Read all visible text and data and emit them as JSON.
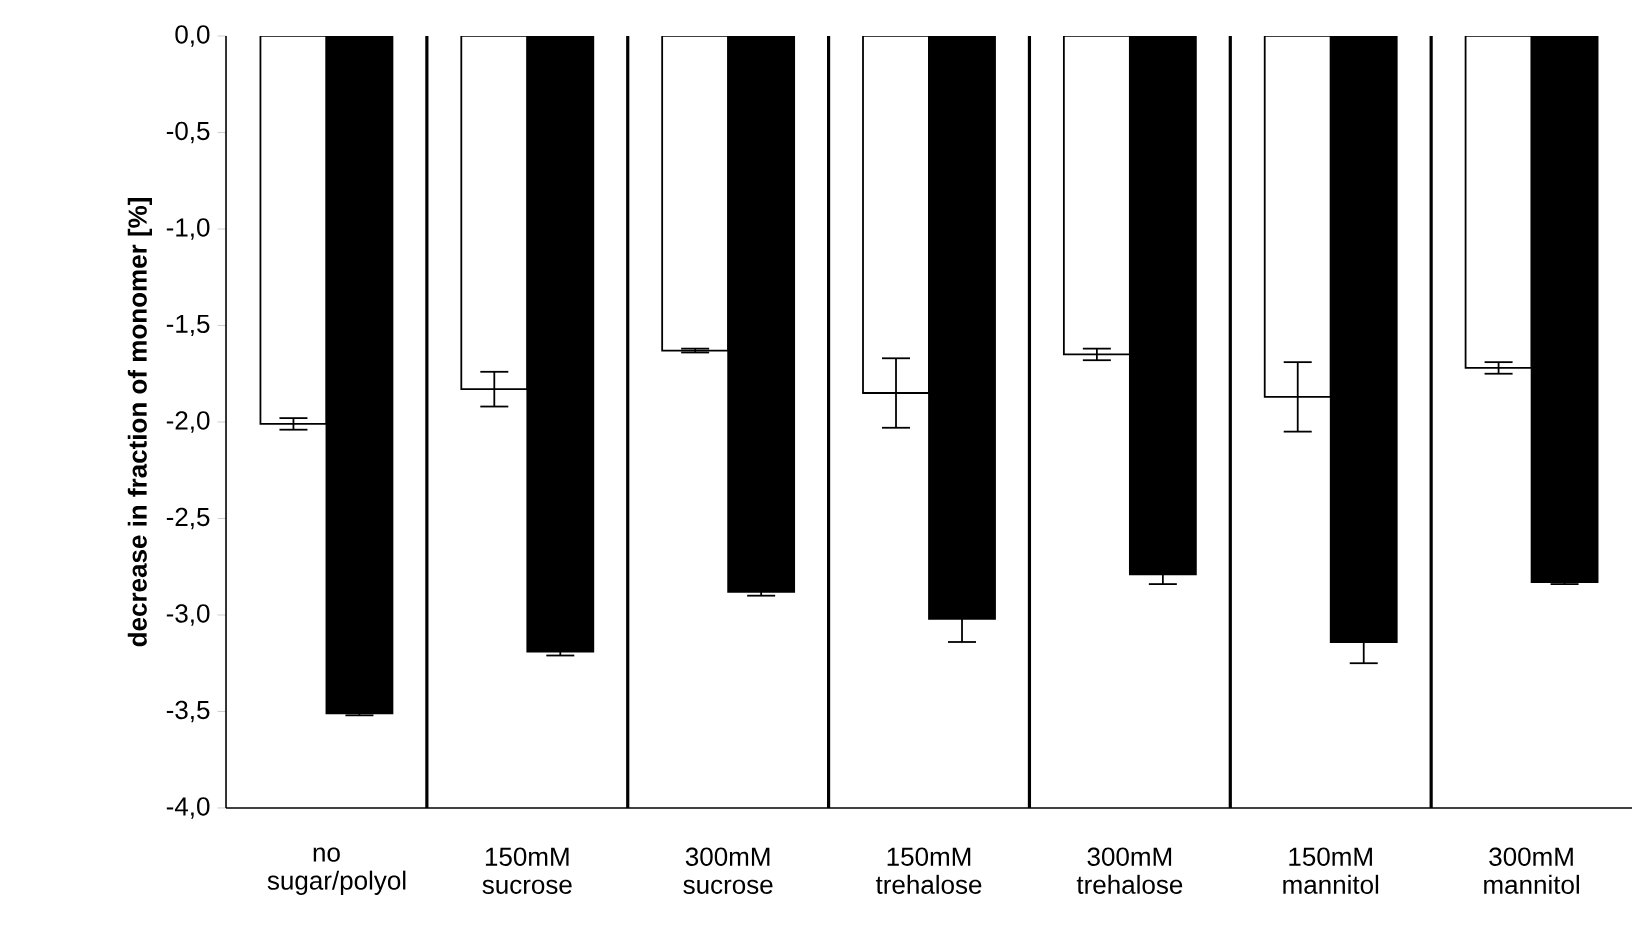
{
  "chart_data": {
    "type": "bar",
    "ylabel": "**decrease in fraction of monomer [%]**",
    "categories": [
      "no sugar/polyol",
      "150mM sucrose",
      "300mM sucrose",
      "150mM trehalose",
      "300mM trehalose",
      "150mM mannitol",
      "300mM mannitol"
    ],
    "series": [
      {
        "color": "#ffffff",
        "values": [
          -2.01,
          -1.83,
          -1.63,
          -1.85,
          -1.65,
          -1.87,
          -1.72
        ],
        "errors": [
          0.03,
          0.09,
          0.01,
          0.18,
          0.03,
          0.18,
          0.03
        ]
      },
      {
        "color": "#000000",
        "values": [
          -3.51,
          -3.19,
          -2.88,
          -3.02,
          -2.79,
          -3.14,
          -2.83
        ],
        "errors": [
          0.01,
          0.02,
          0.02,
          0.12,
          0.05,
          0.11,
          0.01
        ]
      }
    ],
    "ylim": [
      -4.0,
      0.0
    ],
    "yticks": [
      {
        "value": 0.0,
        "label": "0,0"
      },
      {
        "value": -0.5,
        "label": "-0,5"
      },
      {
        "value": -1.0,
        "label": "-1,0"
      },
      {
        "value": -1.5,
        "label": "-1,5"
      },
      {
        "value": -2.0,
        "label": "-2,0"
      },
      {
        "value": -2.5,
        "label": "-2,5"
      },
      {
        "value": -3.0,
        "label": "-3,0"
      },
      {
        "value": -3.5,
        "label": "-3,5"
      },
      {
        "value": -4.0,
        "label": "-4,0"
      }
    ],
    "grid": "x"
  }
}
